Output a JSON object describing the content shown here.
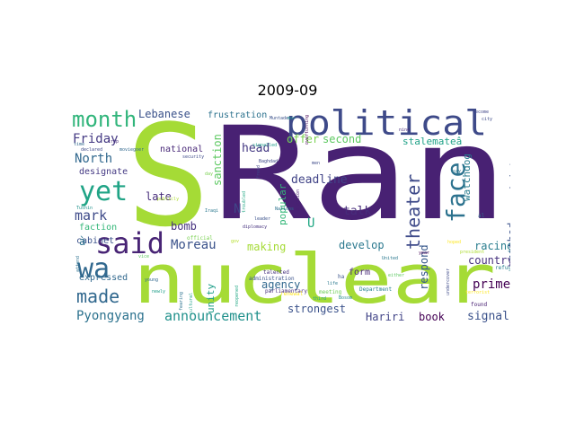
{
  "title": "2009-09",
  "background_color": "#ffffff",
  "words": [
    {
      "text": "S",
      "color": "#a5db36"
    },
    {
      "text": "Ran",
      "color": "#482173"
    },
    {
      "text": "nuclear",
      "color": "#a5db36"
    },
    {
      "text": "political",
      "color": "#3e4a89"
    },
    {
      "text": "said",
      "color": "#482475"
    },
    {
      "text": "wa",
      "color": "#31688e"
    },
    {
      "text": "yet",
      "color": "#20a486"
    },
    {
      "text": "month",
      "color": "#31b57b"
    },
    {
      "text": "made",
      "color": "#31688e"
    },
    {
      "text": "face",
      "color": "#2c728e"
    },
    {
      "text": "theater",
      "color": "#3e4a89"
    },
    {
      "text": "announcement",
      "color": "#21918c"
    },
    {
      "text": "Pyongyang",
      "color": "#2c728e"
    },
    {
      "text": "Moreau",
      "color": "#3b528b"
    },
    {
      "text": "Friday",
      "color": "#443983"
    },
    {
      "text": "North",
      "color": "#31688e"
    },
    {
      "text": "mark",
      "color": "#3e4a89"
    },
    {
      "text": "Lebanese",
      "color": "#3b528b"
    },
    {
      "text": "frustration",
      "color": "#2c728e"
    },
    {
      "text": "head",
      "color": "#443983"
    },
    {
      "text": "late",
      "color": "#472d7b"
    },
    {
      "text": "bomb",
      "color": "#46327e"
    },
    {
      "text": "sanction",
      "color": "#5ec962"
    },
    {
      "text": "deadline",
      "color": "#414487"
    },
    {
      "text": "offer",
      "color": "#7ad151"
    },
    {
      "text": "second",
      "color": "#5ec962"
    },
    {
      "text": "stalemateâ",
      "color": "#1fa187"
    },
    {
      "text": "minister",
      "color": "#3b528b"
    },
    {
      "text": "watchdog",
      "color": "#287c8e"
    },
    {
      "text": "popular",
      "color": "#35b779"
    },
    {
      "text": "talk",
      "color": "#472d7b"
    },
    {
      "text": "method",
      "color": "#3b528b"
    },
    {
      "text": "develop",
      "color": "#2a788e"
    },
    {
      "text": "racing",
      "color": "#287c8e"
    },
    {
      "text": "respond",
      "color": "#38598c"
    },
    {
      "text": "country",
      "color": "#46307e"
    },
    {
      "text": "prime",
      "color": "#440154"
    },
    {
      "text": "signal",
      "color": "#3b528b"
    },
    {
      "text": "book",
      "color": "#440154"
    },
    {
      "text": "Hariri",
      "color": "#414487"
    },
    {
      "text": "strongest",
      "color": "#3b528b"
    },
    {
      "text": "agency",
      "color": "#31688e"
    },
    {
      "text": "making",
      "color": "#a5db36"
    },
    {
      "text": "unity",
      "color": "#1f9e89"
    },
    {
      "text": "form",
      "color": "#482878"
    },
    {
      "text": "expressed",
      "color": "#31688e"
    },
    {
      "text": "faction",
      "color": "#35b779"
    },
    {
      "text": "cabinet",
      "color": "#3b528b"
    },
    {
      "text": "designate",
      "color": "#443983"
    },
    {
      "text": "national",
      "color": "#482878"
    },
    {
      "text": "N",
      "color": "#404688"
    },
    {
      "text": "U",
      "color": "#22a884"
    },
    {
      "text": "à",
      "color": "#2c728e"
    },
    {
      "text": "talented",
      "color": "#46307e"
    },
    {
      "text": "renewal",
      "color": "#fde725"
    },
    {
      "text": "meeting",
      "color": "#6ece58"
    },
    {
      "text": "Department",
      "color": "#26828e"
    },
    {
      "text": "United",
      "color": "#2a788e"
    },
    {
      "text": "president",
      "color": "#addc30"
    },
    {
      "text": "refuge",
      "color": "#277f8e"
    },
    {
      "text": "terrorist",
      "color": "#fde725"
    },
    {
      "text": "found",
      "color": "#482173"
    },
    {
      "text": "election",
      "color": "#482173"
    },
    {
      "text": "Nations",
      "color": "#2c728e"
    },
    {
      "text": "Baghdad",
      "color": "#3e4a89"
    },
    {
      "text": "signalled",
      "color": "#1f9e89"
    },
    {
      "text": "leader",
      "color": "#3b528b"
    },
    {
      "text": "diplomacy",
      "color": "#46327e"
    },
    {
      "text": "administration",
      "color": "#3b528b"
    },
    {
      "text": "parliamentary",
      "color": "#472d7b"
    },
    {
      "text": "official",
      "color": "#7ad151"
    },
    {
      "text": "Iraqi",
      "color": "#2a788e"
    },
    {
      "text": "security",
      "color": "#3e4a89"
    },
    {
      "text": "moviegoer",
      "color": "#31688e"
    },
    {
      "text": "declared",
      "color": "#3e4a89"
    },
    {
      "text": "Tushin",
      "color": "#21918c"
    },
    {
      "text": "time",
      "color": "#31688e"
    },
    {
      "text": "trip",
      "color": "#472d7b"
    },
    {
      "text": "attend",
      "color": "#2c728e"
    },
    {
      "text": "young",
      "color": "#31688e"
    },
    {
      "text": "cultural",
      "color": "#1f9e89"
    },
    {
      "text": "fearing",
      "color": "#2c728e"
    },
    {
      "text": "reopened",
      "color": "#22a884"
    },
    {
      "text": "nine",
      "color": "#472d7b"
    },
    {
      "text": "become",
      "color": "#404688"
    },
    {
      "text": "say",
      "color": "#2a788e"
    },
    {
      "text": "hoped",
      "color": "#fde725"
    },
    {
      "text": "year",
      "color": "#440154"
    },
    {
      "text": "life",
      "color": "#2a788e"
    },
    {
      "text": "third",
      "color": "#1fa187"
    },
    {
      "text": "Bosom",
      "color": "#238a8d"
    },
    {
      "text": "undercover",
      "color": "#3e4a89"
    },
    {
      "text": "newly",
      "color": "#1f9e89"
    },
    {
      "text": "Muntader",
      "color": "#3b528b"
    },
    {
      "text": "troubled",
      "color": "#22a884"
    },
    {
      "text": "freed",
      "color": "#414487"
    },
    {
      "text": "men",
      "color": "#3e4a89"
    },
    {
      "text": "day",
      "color": "#7ad151"
    },
    {
      "text": "publicly",
      "color": "#addc30"
    },
    {
      "text": "vice",
      "color": "#5ec962"
    },
    {
      "text": "gov",
      "color": "#b5de2b"
    },
    {
      "text": "al",
      "color": "#31688e"
    },
    {
      "text": "city",
      "color": "#3e4a89"
    },
    {
      "text": "either",
      "color": "#5ec962"
    },
    {
      "text": "ha",
      "color": "#3b528b"
    },
    {
      "text": "mar",
      "color": "#21918c"
    },
    {
      "text": "overturning",
      "color": "#440154"
    }
  ]
}
